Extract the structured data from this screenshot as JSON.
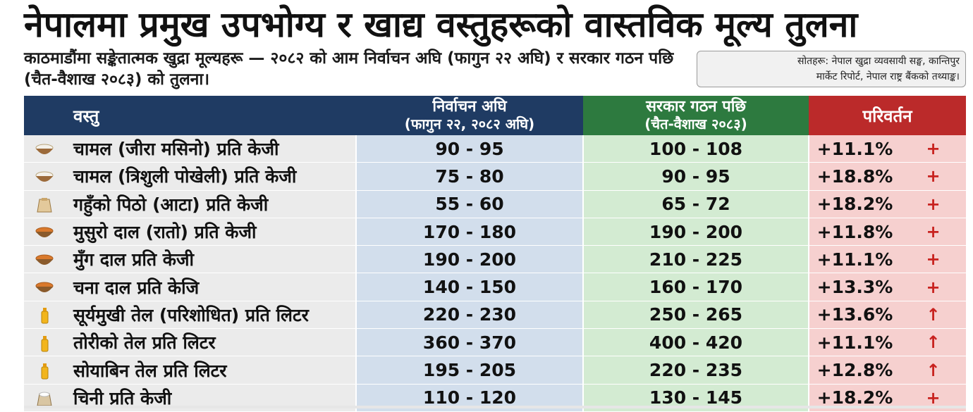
{
  "title": "नेपालमा प्रमुख उपभोग्य र खाद्य वस्तुहरूको वास्तविक मूल्य तुलना",
  "subtitle": "काठमाडौंमा सङ्केतात्मक खुद्रा मूल्यहरू — २०८२ को आम निर्वाचन अघि (फागुन २२ अघि) र सरकार गठन पछि (चैत-वैशाख २०८३) को तुलना।",
  "source": {
    "line1": "सोतहरू: नेपाल खुद्रा व्यवसायी सङ्घ, कान्तिपुर",
    "line2": "मार्केट रिपोर्ट, नेपाल राष्ट्र बैंकको तथ्याङ्क।"
  },
  "table": {
    "headers": {
      "item": "वस्तु",
      "before": "निर्वाचन अघि",
      "before_sub": "(फागुन २२, २०८२ अघि)",
      "after": "सरकार गठन पछि",
      "after_sub": "(चैत-वैशाख २०८३)",
      "change": "परिवर्तन"
    },
    "rows": [
      {
        "icon": "rice-bowl-icon",
        "item": "चामल (जीरा मसिनो) प्रति केजी",
        "before": "90 - 95",
        "after": "100 - 108",
        "change": "+11.1%",
        "arrow": "+"
      },
      {
        "icon": "rice-bowl-icon",
        "item": "चामल (त्रिशुली पोखेली) प्रति केजी",
        "before": "75 - 80",
        "after": "90 - 95",
        "change": "+18.8%",
        "arrow": "+"
      },
      {
        "icon": "flour-sack-icon",
        "item": "गहुँको पिठो (आटा) प्रति केजी",
        "before": "55 - 60",
        "after": "65 - 72",
        "change": "+18.2%",
        "arrow": "+"
      },
      {
        "icon": "lentil-bowl-icon",
        "item": "मुसुरो दाल (रातो) प्रति केजी",
        "before": "170 - 180",
        "after": "190 - 200",
        "change": "+11.8%",
        "arrow": "+"
      },
      {
        "icon": "lentil-bowl-icon",
        "item": "मुँग दाल प्रति केजी",
        "before": "190 - 200",
        "after": "210 - 225",
        "change": "+11.1%",
        "arrow": "+"
      },
      {
        "icon": "lentil-bowl-icon",
        "item": "चना दाल प्रति केजि",
        "before": "140 - 150",
        "after": "160 - 170",
        "change": "+13.3%",
        "arrow": "+"
      },
      {
        "icon": "oil-bottle-icon",
        "item": "सूर्यमुखी तेल (परिशोधित) प्रति लिटर",
        "before": "220 - 230",
        "after": "250 - 265",
        "change": "+13.6%",
        "arrow": "↑"
      },
      {
        "icon": "oil-bottle-icon",
        "item": "तोरीको तेल प्रति लिटर",
        "before": "360 - 370",
        "after": "400 - 420",
        "change": "+11.1%",
        "arrow": "↑"
      },
      {
        "icon": "oil-bottle-icon",
        "item": "सोयाबिन तेल प्रति लिटर",
        "before": "195 - 205",
        "after": "220 - 235",
        "change": "+12.8%",
        "arrow": "↑"
      },
      {
        "icon": "sugar-sack-icon",
        "item": "चिनी प्रति केजी",
        "before": "110 - 120",
        "after": "130 - 145",
        "change": "+18.2%",
        "arrow": "+"
      }
    ]
  },
  "colors": {
    "header_blue": "#1f3b63",
    "header_green": "#2d7a3f",
    "header_red": "#bb2a2a",
    "before_cell": "#d2deec",
    "after_cell": "#d3ebd2",
    "change_cell": "#f6d0cf",
    "arrow_red": "#c8221f"
  }
}
